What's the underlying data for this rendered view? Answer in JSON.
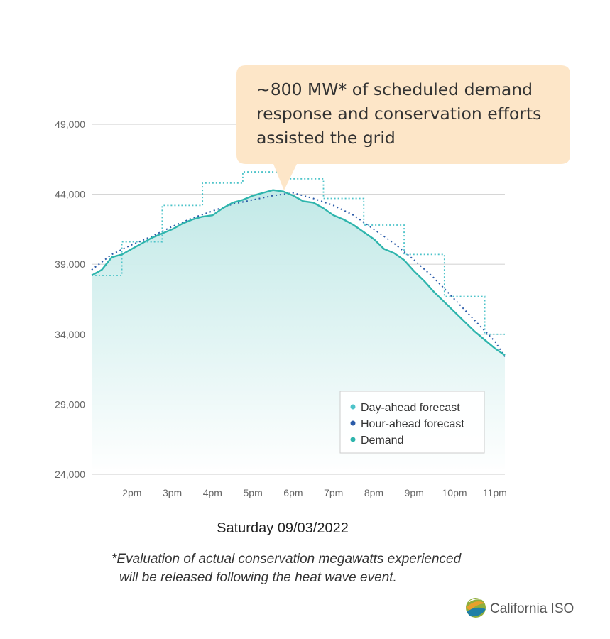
{
  "callout": {
    "lines": [
      "~800 MW* of scheduled demand",
      "response and conservation efforts",
      "assisted the grid"
    ]
  },
  "date_label": "Saturday 09/03/2022",
  "footnote": {
    "lines": [
      "*Evaluation of actual conservation megawatts experienced",
      "will be released following the heat wave event."
    ]
  },
  "logo": {
    "text": "California ISO",
    "icon": "california-iso-logo-icon"
  },
  "colors": {
    "day_ahead": "#4cc3c9",
    "hour_ahead": "#2a5aa8",
    "demand": "#2fb5ad",
    "fill_top": "#bfe8e6",
    "callout_bg": "#fde6c8",
    "grid": "#d6d6d6"
  },
  "chart_data": {
    "type": "line",
    "xlabel": "",
    "ylabel": "",
    "ylim": [
      24000,
      50000
    ],
    "y_ticks": [
      24000,
      29000,
      34000,
      39000,
      44000,
      49000
    ],
    "y_tick_labels": [
      "24,000",
      "29,000",
      "34,000",
      "39,000",
      "44,000",
      "49,000"
    ],
    "x_range": [
      13.0,
      23.25
    ],
    "x_ticks": [
      14,
      15,
      16,
      17,
      18,
      19,
      20,
      21,
      22,
      23
    ],
    "x_tick_labels": [
      "2pm",
      "3pm",
      "4pm",
      "5pm",
      "6pm",
      "7pm",
      "8pm",
      "9pm",
      "10pm",
      "11pm"
    ],
    "grid": true,
    "legend_position": "bottom-right",
    "series": [
      {
        "name": "Day-ahead forecast",
        "style": "dotted-step",
        "x": [
          13.0,
          13.75,
          13.75,
          14.75,
          14.75,
          15.75,
          15.75,
          16.75,
          16.75,
          17.75,
          17.75,
          18.75,
          18.75,
          19.75,
          19.75,
          20.75,
          20.75,
          21.75,
          21.75,
          22.75,
          22.75,
          23.25
        ],
        "values": [
          38200,
          38200,
          40600,
          40600,
          43200,
          43200,
          44800,
          44800,
          45600,
          45600,
          45100,
          45100,
          43700,
          43700,
          41800,
          41800,
          39700,
          39700,
          36700,
          36700,
          34000,
          34000
        ]
      },
      {
        "name": "Hour-ahead forecast",
        "style": "dotted",
        "x": [
          13.0,
          13.5,
          14.0,
          14.5,
          15.0,
          15.5,
          16.0,
          16.5,
          17.0,
          17.5,
          18.0,
          18.5,
          19.0,
          19.5,
          20.0,
          20.5,
          21.0,
          21.5,
          22.0,
          22.5,
          23.0,
          23.25
        ],
        "values": [
          38600,
          39700,
          40400,
          41000,
          41700,
          42300,
          42800,
          43300,
          43600,
          43900,
          44100,
          43700,
          43200,
          42500,
          41500,
          40500,
          39300,
          38000,
          36500,
          35000,
          33500,
          32400
        ]
      },
      {
        "name": "Demand",
        "style": "solid",
        "x": [
          13.0,
          13.25,
          13.5,
          13.75,
          14.0,
          14.25,
          14.5,
          14.75,
          15.0,
          15.25,
          15.5,
          15.75,
          16.0,
          16.25,
          16.5,
          16.75,
          17.0,
          17.25,
          17.5,
          17.75,
          18.0,
          18.25,
          18.5,
          18.75,
          19.0,
          19.25,
          19.5,
          19.75,
          20.0,
          20.25,
          20.5,
          20.75,
          21.0,
          21.25,
          21.5,
          21.75,
          22.0,
          22.25,
          22.5,
          22.75,
          23.0,
          23.25
        ],
        "values": [
          38200,
          38600,
          39500,
          39700,
          40100,
          40500,
          40900,
          41200,
          41500,
          41900,
          42200,
          42400,
          42500,
          43000,
          43400,
          43600,
          43900,
          44100,
          44300,
          44200,
          43900,
          43500,
          43400,
          43000,
          42500,
          42200,
          41800,
          41300,
          40800,
          40100,
          39800,
          39300,
          38500,
          37800,
          37000,
          36300,
          35600,
          34900,
          34200,
          33600,
          33000,
          32500
        ]
      }
    ]
  }
}
